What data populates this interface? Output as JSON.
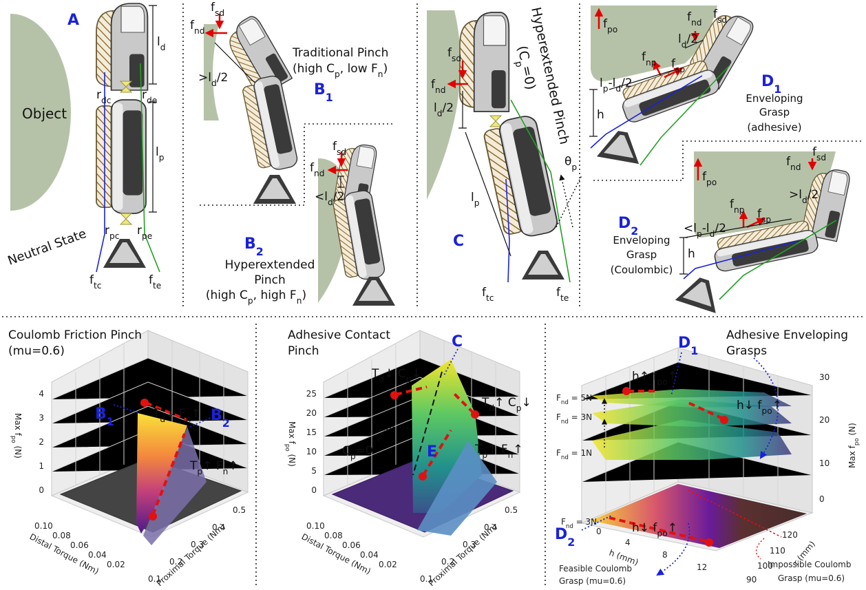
{
  "panel_a": {
    "letter": "A",
    "object": "Object",
    "state": "Neutral State",
    "l_d": [
      "l",
      {
        "sub": "d"
      }
    ],
    "r_dc": [
      "r",
      {
        "sub": "dc"
      }
    ],
    "r_de": [
      "r",
      {
        "sub": "de"
      }
    ],
    "l_p": [
      "l",
      {
        "sub": "p"
      }
    ],
    "r_pc": [
      "r",
      {
        "sub": "pc"
      }
    ],
    "r_pe": [
      "r",
      {
        "sub": "pe"
      }
    ],
    "f_tc": [
      "f",
      {
        "sub": "tc"
      }
    ],
    "f_te": [
      "f",
      {
        "sub": "te"
      }
    ]
  },
  "panel_b1": {
    "letter": [
      "B",
      {
        "sub": "1"
      }
    ],
    "title": "Traditional Pinch",
    "subtitle": [
      "(high C",
      {
        "sub": "p"
      },
      ", low F",
      {
        "sub": "n"
      },
      ")"
    ],
    "f_sd": [
      "f",
      {
        "sub": "sd"
      }
    ],
    "f_nd": [
      "f",
      {
        "sub": "nd"
      }
    ],
    "length": [
      ">l",
      {
        "sub": "d"
      },
      "/2"
    ]
  },
  "panel_b2": {
    "letter": [
      "B",
      {
        "sub": "2"
      }
    ],
    "title_lines": [
      "Hyperextended",
      "Pinch"
    ],
    "subtitle": [
      "(high C",
      {
        "sub": "p"
      },
      ", high F",
      {
        "sub": "n"
      },
      ")"
    ],
    "f_sd": [
      "f",
      {
        "sub": "sd"
      }
    ],
    "f_nd": [
      "f",
      {
        "sub": "nd"
      }
    ],
    "length": [
      "<l",
      {
        "sub": "d"
      },
      "/2"
    ]
  },
  "panel_c": {
    "letter": "C",
    "title": "Hyperextended Pinch",
    "subtitle": [
      "(C",
      {
        "sub": "p"
      },
      "=0)"
    ],
    "f_sd": [
      "f",
      {
        "sub": "sd"
      }
    ],
    "f_nd": [
      "f",
      {
        "sub": "nd"
      }
    ],
    "l_d_half": [
      "l",
      {
        "sub": "d"
      },
      "/2"
    ],
    "l_p": [
      "l",
      {
        "sub": "p"
      }
    ],
    "theta_p": [
      "θ",
      {
        "sub": "p"
      }
    ],
    "f_tc": [
      "f",
      {
        "sub": "tc"
      }
    ],
    "f_te": [
      "f",
      {
        "sub": "te"
      }
    ]
  },
  "panel_d1": {
    "letter": [
      "D",
      {
        "sub": "1"
      }
    ],
    "caption_lines": [
      "Enveloping",
      "Grasp",
      "(adhesive)"
    ],
    "f_po": [
      "f",
      {
        "sub": "po"
      }
    ],
    "f_nd": [
      "f",
      {
        "sub": "nd"
      }
    ],
    "f_sd": [
      "f",
      {
        "sub": "sd"
      }
    ],
    "l_d_half": [
      "l",
      {
        "sub": "d"
      },
      "/2"
    ],
    "f_np": [
      "f",
      {
        "sub": "np"
      }
    ],
    "f_sp": [
      "f",
      {
        "sub": "sp"
      }
    ],
    "length": [
      "l",
      {
        "sub": "p"
      },
      "-l",
      {
        "sub": "d"
      },
      "/2"
    ],
    "h": "h"
  },
  "panel_d2": {
    "letter": [
      "D",
      {
        "sub": "2"
      }
    ],
    "caption_lines": [
      "Enveloping",
      "Grasp",
      "(Coulombic)"
    ],
    "f_po": [
      "f",
      {
        "sub": "po"
      }
    ],
    "f_nd": [
      "f",
      {
        "sub": "nd"
      }
    ],
    "f_sd": [
      "f",
      {
        "sub": "sd"
      }
    ],
    "l_d_half": [
      ">l",
      {
        "sub": "d"
      },
      "/2"
    ],
    "f_np": [
      "f",
      {
        "sub": "np"
      }
    ],
    "f_sp": [
      "f",
      {
        "sub": "sp"
      }
    ],
    "length": [
      "<l",
      {
        "sub": "p"
      },
      "-l",
      {
        "sub": "d"
      },
      "/2"
    ],
    "h": "h"
  },
  "plot_coulomb": {
    "title_lines": [
      "Coulomb Friction Pinch",
      "(mu=0.6)"
    ],
    "z_label": [
      "Max f",
      {
        "sub": "po"
      },
      " (N)"
    ],
    "z_ticks": [
      "0",
      "1",
      "2",
      "3",
      "4"
    ],
    "distal_ticks": [
      "0.10",
      "0.08",
      "0.06",
      "0.04",
      "0.02"
    ],
    "distal_label": "Distal Torque (Nm)",
    "proximal_ticks": [
      "0.1",
      "0.2",
      "0.3",
      "0.4",
      "0.5"
    ],
    "proximal_label": "Proximal Torque (Nm)",
    "callouts": {
      "b1": [
        "B",
        {
          "sub": "1"
        }
      ],
      "b2": [
        "B",
        {
          "sub": "2"
        }
      ],
      "top": [
        "T",
        {
          "sub": "d"
        },
        "↓ F",
        {
          "sub": "n"
        },
        "↑"
      ],
      "bottom": [
        "T",
        {
          "sub": "p"
        },
        "↑ F",
        {
          "sub": "n"
        },
        "↑"
      ]
    }
  },
  "plot_adhesive": {
    "title_lines": [
      "Adhesive Contact",
      "Pinch"
    ],
    "z_label": [
      "Max f",
      {
        "sub": "po"
      },
      " (N)"
    ],
    "z_ticks": [
      "0",
      "5",
      "10",
      "15",
      "20",
      "25"
    ],
    "distal_ticks": [
      "0.10",
      "0.08",
      "0.06",
      "0.04",
      "0.02"
    ],
    "distal_label": "Distal Torque (Nm)",
    "proximal_ticks": [
      "0.1",
      "0.2",
      "0.3",
      "0.4",
      "0.5"
    ],
    "proximal_label": "Proximal Torque (Nm)",
    "callouts": {
      "c": "C",
      "e": "E",
      "cp0": [
        "C",
        {
          "sub": "p"
        },
        "=0"
      ],
      "left": [
        "T",
        {
          "sub": "d"
        },
        "↓ C",
        {
          "sub": "p"
        },
        "↓"
      ],
      "right": [
        "T",
        {
          "sub": "d"
        },
        "↑ C",
        {
          "sub": "p"
        },
        "↓"
      ],
      "bottom": [
        "T",
        {
          "sub": "p"
        },
        "↑ F",
        {
          "sub": "n"
        },
        "↑"
      ]
    }
  },
  "plot_enveloping": {
    "title_lines": [
      "Adhesive Enveloping",
      "Grasps"
    ],
    "z_label": [
      "Max f",
      {
        "sub": "po"
      },
      " (N)"
    ],
    "z_ticks": [
      "0",
      "10",
      "20",
      "30"
    ],
    "h_ticks": [
      "0",
      "4",
      "8",
      "12"
    ],
    "h_label": "h (mm)",
    "r_ticks": [
      "90",
      "100",
      "110",
      "120"
    ],
    "r_label": "r (mm)",
    "levels": [
      [
        "F",
        {
          "sub": "nd"
        },
        " = 5N"
      ],
      [
        "F",
        {
          "sub": "nd"
        },
        " = 3N"
      ],
      [
        "F",
        {
          "sub": "nd"
        },
        " = 1N"
      ],
      [
        "F",
        {
          "sub": "nd"
        },
        " = 3N"
      ]
    ],
    "callouts": {
      "d1": [
        "D",
        {
          "sub": "1"
        }
      ],
      "d2": [
        "D",
        {
          "sub": "2"
        }
      ],
      "up": [
        "h↑ f",
        {
          "sub": "po"
        },
        "↑"
      ],
      "down_top": [
        "h↓ f",
        {
          "sub": "po"
        },
        "↑"
      ],
      "down_floor": [
        "h↓ f",
        {
          "sub": "po"
        },
        "↑"
      ]
    },
    "feasible_lines": [
      "Feasible Coulomb",
      "Grasp (mu=0.6)"
    ],
    "impossible_lines": [
      "Impossible Coulomb",
      "Grasp (mu=0.6)"
    ]
  }
}
